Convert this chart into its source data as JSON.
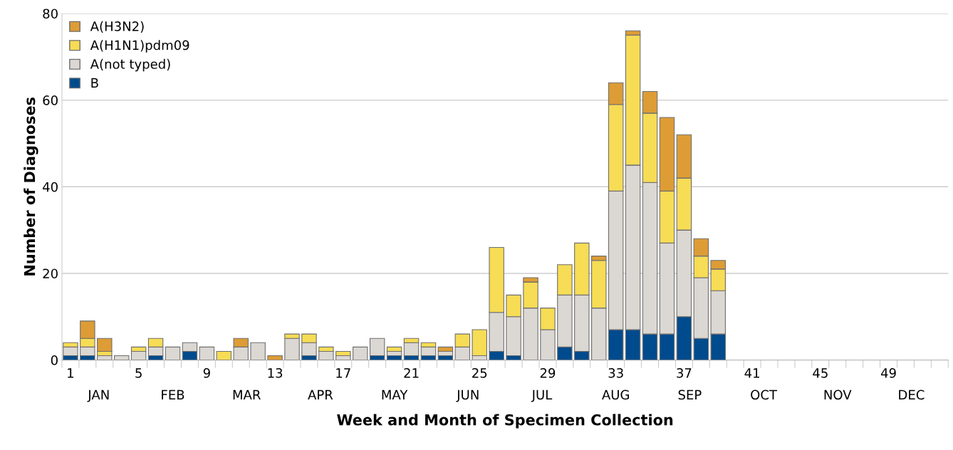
{
  "chart_data": {
    "type": "bar",
    "stacked": true,
    "xlabel": "Week and Month of Specimen Collection",
    "ylabel": "Number of Diagnoses",
    "categories": [
      "1",
      null,
      null,
      null,
      "5",
      null,
      null,
      null,
      "9",
      null,
      null,
      null,
      "13",
      null,
      null,
      null,
      "17",
      null,
      null,
      null,
      "21",
      null,
      null,
      null,
      "25",
      null,
      null,
      null,
      "29",
      null,
      null,
      null,
      "33",
      null,
      null,
      null,
      "37",
      null,
      null,
      null,
      "41",
      null,
      null,
      null,
      "45",
      null,
      null,
      null,
      "49",
      null,
      null,
      null
    ],
    "series": [
      {
        "name": "B",
        "color": "#004b8d",
        "values": [
          1,
          1,
          0,
          0,
          0,
          1,
          0,
          2,
          0,
          0,
          0,
          0,
          0,
          0,
          1,
          0,
          0,
          0,
          1,
          1,
          1,
          1,
          1,
          0,
          0,
          2,
          1,
          0,
          0,
          3,
          2,
          0,
          7,
          7,
          6,
          6,
          10,
          5,
          6,
          0,
          0,
          0,
          0,
          0,
          0,
          0,
          0,
          0,
          0,
          0,
          0,
          0
        ]
      },
      {
        "name": "A(not typed)",
        "color": "#dbd7d2",
        "values": [
          2,
          2,
          1,
          1,
          2,
          2,
          3,
          2,
          3,
          0,
          3,
          4,
          0,
          5,
          3,
          2,
          1,
          3,
          4,
          1,
          3,
          2,
          1,
          3,
          1,
          9,
          9,
          12,
          7,
          12,
          13,
          12,
          32,
          38,
          35,
          21,
          20,
          14,
          10,
          0,
          0,
          0,
          0,
          0,
          0,
          0,
          0,
          0,
          0,
          0,
          0,
          0
        ]
      },
      {
        "name": "A(H1N1)pdm09",
        "color": "#f7dc55",
        "values": [
          1,
          2,
          1,
          0,
          1,
          2,
          0,
          0,
          0,
          2,
          0,
          0,
          0,
          1,
          2,
          1,
          1,
          0,
          0,
          1,
          1,
          1,
          0,
          3,
          6,
          15,
          5,
          6,
          5,
          7,
          12,
          11,
          20,
          30,
          16,
          12,
          12,
          5,
          5,
          0,
          0,
          0,
          0,
          0,
          0,
          0,
          0,
          0,
          0,
          0,
          0,
          0
        ]
      },
      {
        "name": "A(H3N2)",
        "color": "#dd9c35",
        "values": [
          0,
          4,
          3,
          0,
          0,
          0,
          0,
          0,
          0,
          0,
          2,
          0,
          1,
          0,
          0,
          0,
          0,
          0,
          0,
          0,
          0,
          0,
          1,
          0,
          0,
          0,
          0,
          1,
          0,
          0,
          0,
          1,
          5,
          1,
          5,
          17,
          10,
          4,
          2,
          0,
          0,
          0,
          0,
          0,
          0,
          0,
          0,
          0,
          0,
          0,
          0,
          0
        ]
      }
    ],
    "ylim": [
      0,
      80
    ],
    "yticks": [
      0,
      20,
      40,
      60,
      80
    ],
    "grid": "y",
    "legend": "top left",
    "annotations": [
      "JAN",
      "FEB",
      "MAR",
      "APR",
      "MAY",
      "JUN",
      "JUL",
      "AUG",
      "SEP",
      "OCT",
      "NOV",
      "DEC"
    ]
  }
}
